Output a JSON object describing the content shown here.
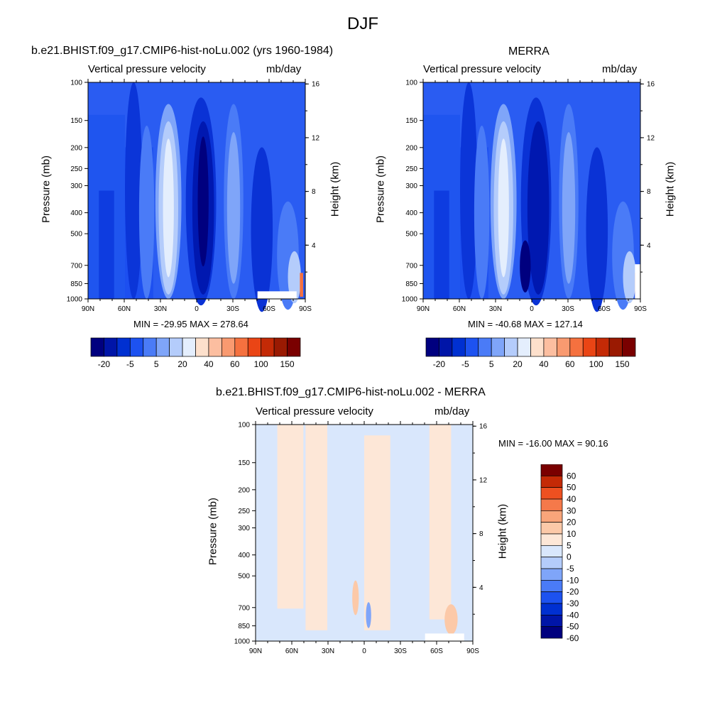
{
  "main_title": "DJF",
  "panels": [
    {
      "title": "b.e21.BHIST.f09_g17.CMIP6-hist-noLu.002 (yrs 1960-1984)",
      "left_label": "Vertical pressure velocity",
      "right_label": "mb/day",
      "ylabel": "Pressure (mb)",
      "y2label": "Height (km)",
      "minmax": "MIN = -29.95  MAX = 278.64"
    },
    {
      "title": "MERRA",
      "left_label": "Vertical pressure velocity",
      "right_label": "mb/day",
      "ylabel": "Pressure (mb)",
      "y2label": "Height (km)",
      "minmax": "MIN = -40.68  MAX = 127.14"
    },
    {
      "title": "b.e21.BHIST.f09_g17.CMIP6-hist-noLu.002 - MERRA",
      "left_label": "Vertical pressure velocity",
      "right_label": "mb/day",
      "ylabel": "Pressure (mb)",
      "y2label": "Height (km)",
      "minmax": "MIN = -16.00  MAX =  90.16"
    }
  ],
  "colorbar_top": {
    "colors": [
      "#00007f",
      "#0015a8",
      "#0030d1",
      "#1d52f0",
      "#4a7bf7",
      "#7fa5f9",
      "#b4ccfb",
      "#e4eefd",
      "#fde0cc",
      "#fcbea0",
      "#f99a70",
      "#f5713f",
      "#ea4515",
      "#c42a06",
      "#9a1a02",
      "#7a0000"
    ],
    "labels": [
      "-20",
      "-5",
      "5",
      "20",
      "40",
      "60",
      "100",
      "150"
    ]
  },
  "colorbar_diff": {
    "colors": [
      "#00007f",
      "#0015a8",
      "#0030d1",
      "#1d52f0",
      "#4a7bf7",
      "#7fa5f9",
      "#b4ccfb",
      "#d9e7fc",
      "#fde7d7",
      "#fcc9a8",
      "#f9a57a",
      "#f5794a",
      "#ee5020",
      "#c42a06",
      "#7a0000"
    ],
    "labels": [
      "60",
      "50",
      "40",
      "30",
      "20",
      "10",
      "5",
      "0",
      "-5",
      "-10",
      "-20",
      "-30",
      "-40",
      "-50",
      "-60"
    ]
  },
  "chart_data": [
    {
      "type": "heatmap",
      "title": "b.e21.BHIST.f09_g17.CMIP6-hist-noLu.002 (yrs 1960-1984)",
      "ylabel": "Pressure (mb)",
      "y2label": "Height (km)",
      "x_ticks": [
        "90N",
        "60N",
        "30N",
        "0",
        "30S",
        "60S",
        "90S"
      ],
      "y_ticks": [
        "100",
        "150",
        "200",
        "250",
        "300",
        "400",
        "500",
        "700",
        "850",
        "1000"
      ],
      "y2_ticks": [
        "16",
        "12",
        "8",
        "4"
      ],
      "min": -29.95,
      "max": 278.64,
      "units": "mb/day"
    },
    {
      "type": "heatmap",
      "title": "MERRA",
      "ylabel": "Pressure (mb)",
      "y2label": "Height (km)",
      "x_ticks": [
        "90N",
        "60N",
        "30N",
        "0",
        "30S",
        "60S",
        "90S"
      ],
      "y_ticks": [
        "100",
        "150",
        "200",
        "250",
        "300",
        "400",
        "500",
        "700",
        "850",
        "1000"
      ],
      "y2_ticks": [
        "16",
        "12",
        "8",
        "4"
      ],
      "min": -40.68,
      "max": 127.14,
      "units": "mb/day"
    },
    {
      "type": "heatmap",
      "title": "b.e21.BHIST.f09_g17.CMIP6-hist-noLu.002 - MERRA",
      "ylabel": "Pressure (mb)",
      "y2label": "Height (km)",
      "x_ticks": [
        "90N",
        "60N",
        "30N",
        "0",
        "30S",
        "60S",
        "90S"
      ],
      "y_ticks": [
        "100",
        "150",
        "200",
        "250",
        "300",
        "400",
        "500",
        "700",
        "850",
        "1000"
      ],
      "y2_ticks": [
        "16",
        "12",
        "8",
        "4"
      ],
      "min": -16.0,
      "max": 90.16,
      "units": "mb/day"
    }
  ]
}
